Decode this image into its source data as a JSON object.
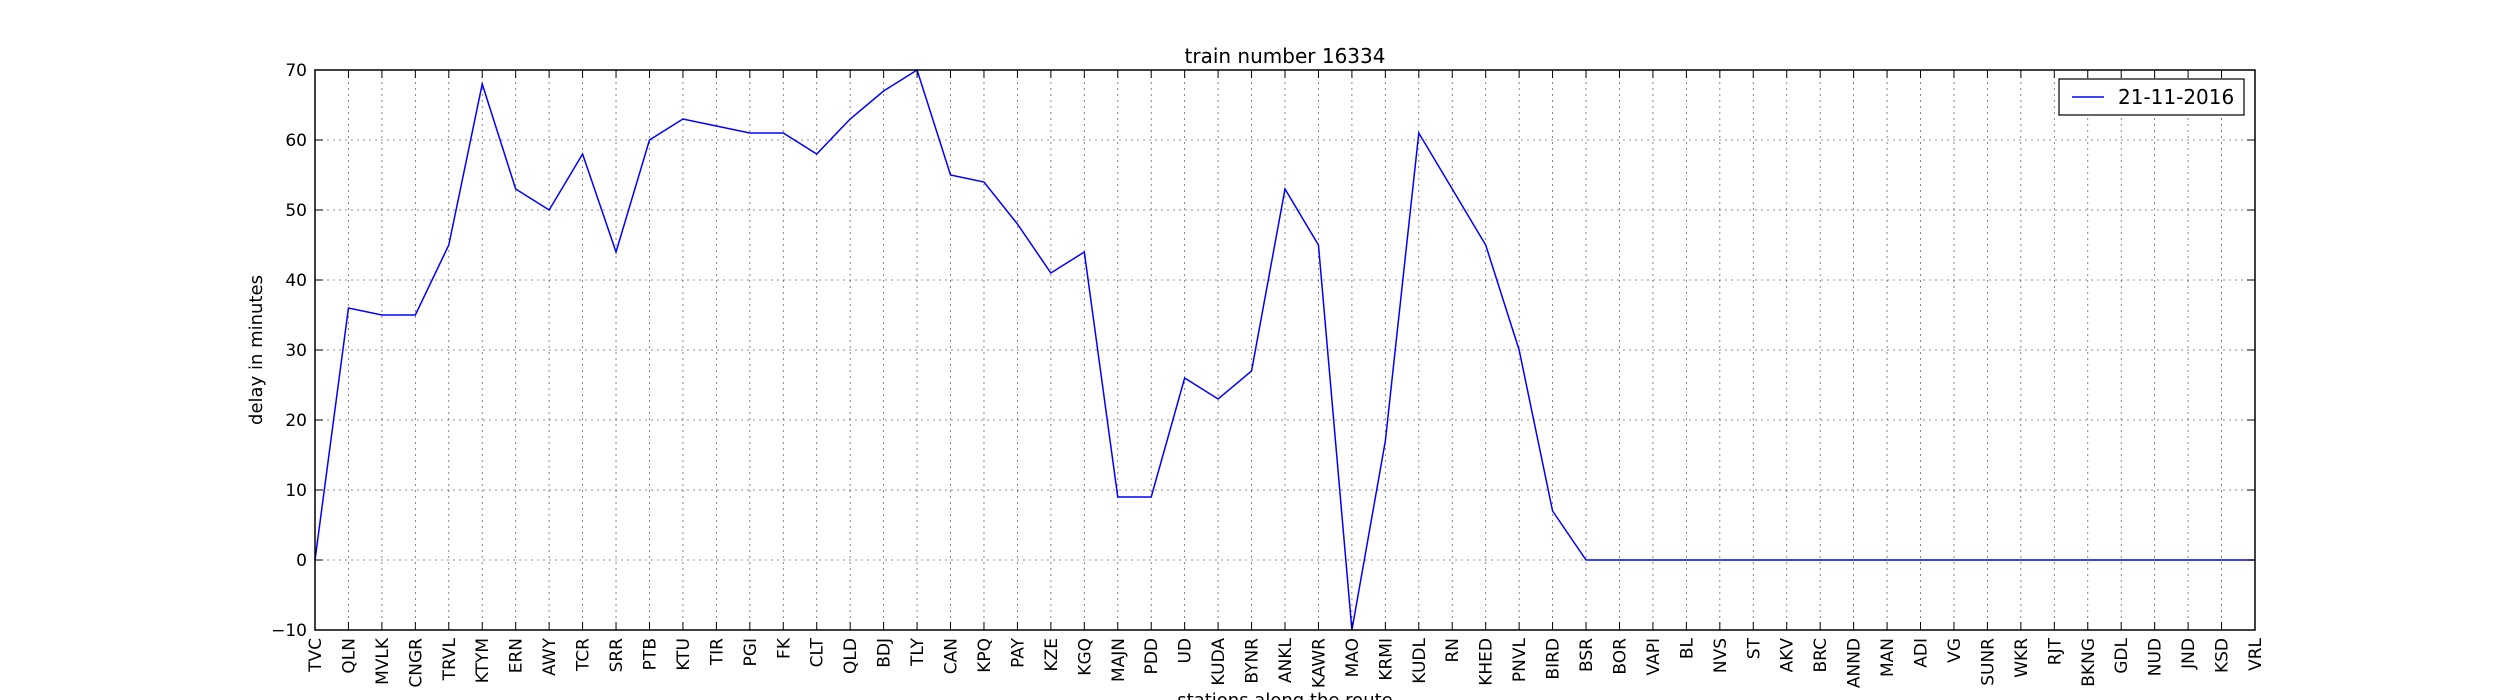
{
  "chart_data": {
    "type": "line",
    "title": "train number 16334",
    "xlabel": "stations along the route",
    "ylabel": "delay in minutes",
    "ylim": [
      -10,
      70
    ],
    "yticks": [
      -10,
      0,
      10,
      20,
      30,
      40,
      50,
      60,
      70
    ],
    "grid": true,
    "legend_position": "top-right",
    "categories": [
      "TVC",
      "QLN",
      "MVLK",
      "CNGR",
      "TRVL",
      "KTYM",
      "ERN",
      "AWY",
      "TCR",
      "SRR",
      "PTB",
      "KTU",
      "TIR",
      "PGI",
      "FK",
      "CLT",
      "QLD",
      "BDJ",
      "TLY",
      "CAN",
      "KPQ",
      "PAY",
      "KZE",
      "KGQ",
      "MAJN",
      "PDD",
      "UD",
      "KUDA",
      "BYNR",
      "ANKL",
      "KAWR",
      "MAO",
      "KRMI",
      "KUDL",
      "RN",
      "KHED",
      "PNVL",
      "BIRD",
      "BSR",
      "BOR",
      "VAPI",
      "BL",
      "NVS",
      "ST",
      "AKV",
      "BRC",
      "ANND",
      "MAN",
      "ADI",
      "VG",
      "SUNR",
      "WKR",
      "RJT",
      "BKNG",
      "GDL",
      "NUD",
      "JND",
      "KSD",
      "VRL"
    ],
    "series": [
      {
        "name": "21-11-2016",
        "color": "#0000ff",
        "values": [
          0,
          36,
          35,
          35,
          45,
          68,
          53,
          50,
          58,
          44,
          60,
          63,
          62,
          61,
          61,
          58,
          63,
          67,
          70,
          55,
          54,
          48,
          41,
          44,
          9,
          9,
          26,
          23,
          27,
          53,
          45,
          -10,
          17,
          61,
          53,
          45,
          30,
          7,
          0,
          0,
          0,
          0,
          0,
          0,
          0,
          0,
          0,
          0,
          0,
          0,
          0,
          0,
          0,
          0,
          0,
          0,
          0,
          0,
          0
        ]
      }
    ]
  }
}
